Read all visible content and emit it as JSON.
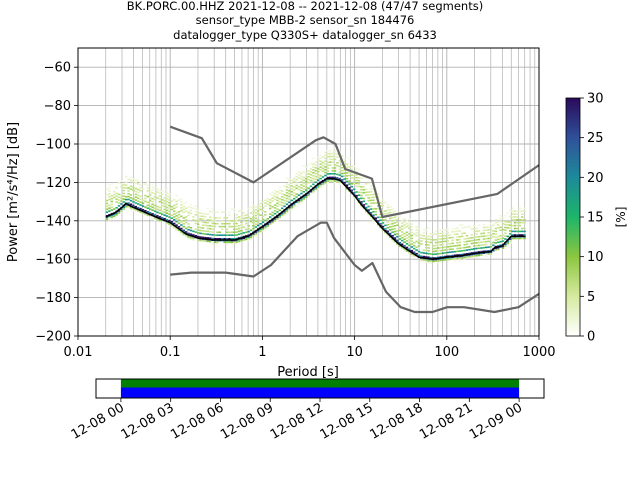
{
  "chart_data": {
    "type": "heatmap",
    "title_lines": [
      "BK.PORC.00.HHZ   2021-12-08 -- 2021-12-08  (47/47 segments)",
      "sensor_type MBB-2 sensor_sn 184476",
      "datalogger_type Q330S+ datalogger_sn 6433"
    ],
    "xlabel": "Period [s]",
    "ylabel": "Power [m²/s⁴/Hz] [dB]",
    "x_scale": "log",
    "xlim": [
      0.01,
      1000
    ],
    "ylim": [
      -200,
      -50
    ],
    "x_ticks": [
      {
        "value": 0.01,
        "label": "0.01"
      },
      {
        "value": 0.1,
        "label": "0.1"
      },
      {
        "value": 1,
        "label": "1"
      },
      {
        "value": 10,
        "label": "10"
      },
      {
        "value": 100,
        "label": "100"
      },
      {
        "value": 1000,
        "label": "1000"
      }
    ],
    "y_ticks": [
      {
        "value": -60,
        "label": "−60"
      },
      {
        "value": -80,
        "label": "−80"
      },
      {
        "value": -100,
        "label": "−100"
      },
      {
        "value": -120,
        "label": "−120"
      },
      {
        "value": -140,
        "label": "−140"
      },
      {
        "value": -160,
        "label": "−160"
      },
      {
        "value": -180,
        "label": "−180"
      },
      {
        "value": -200,
        "label": "−200"
      }
    ],
    "grid": true,
    "colorbar": {
      "label": "[%]",
      "range": [
        0,
        30
      ],
      "ticks": [
        "0",
        "5",
        "10",
        "15",
        "20",
        "25",
        "30"
      ],
      "colormap_stops": [
        "#ffffff",
        "#d6eaa0",
        "#8cc63f",
        "#1db56a",
        "#1d8a9a",
        "#30509a",
        "#2a0a5a"
      ]
    },
    "series": [
      {
        "role": "mode",
        "color": "#000000",
        "points": [
          [
            0.02,
            -138
          ],
          [
            0.025,
            -136
          ],
          [
            0.03,
            -133
          ],
          [
            0.033,
            -131
          ],
          [
            0.04,
            -133
          ],
          [
            0.05,
            -135
          ],
          [
            0.07,
            -138
          ],
          [
            0.1,
            -141
          ],
          [
            0.15,
            -147
          ],
          [
            0.2,
            -149
          ],
          [
            0.3,
            -150
          ],
          [
            0.5,
            -150
          ],
          [
            0.7,
            -148
          ],
          [
            1,
            -143
          ],
          [
            1.5,
            -137
          ],
          [
            2,
            -132
          ],
          [
            3,
            -126
          ],
          [
            4,
            -121
          ],
          [
            5,
            -118
          ],
          [
            6,
            -118
          ],
          [
            7,
            -119
          ],
          [
            8,
            -122
          ],
          [
            10,
            -127
          ],
          [
            12,
            -132
          ],
          [
            15,
            -137
          ],
          [
            20,
            -144
          ],
          [
            30,
            -152
          ],
          [
            40,
            -156
          ],
          [
            50,
            -159
          ],
          [
            70,
            -160
          ],
          [
            100,
            -159
          ],
          [
            150,
            -158
          ],
          [
            200,
            -157
          ],
          [
            300,
            -156
          ],
          [
            330,
            -154
          ],
          [
            400,
            -153
          ],
          [
            500,
            -148
          ],
          [
            700,
            -148
          ]
        ]
      },
      {
        "role": "noise-model-high",
        "color": "#666666",
        "points": [
          [
            0.1,
            -91
          ],
          [
            0.22,
            -97
          ],
          [
            0.32,
            -110
          ],
          [
            0.8,
            -120
          ],
          [
            3.8,
            -98
          ],
          [
            4.6,
            -96.5
          ],
          [
            6.2,
            -100
          ],
          [
            7.9,
            -113
          ],
          [
            15.4,
            -118
          ],
          [
            20,
            -138
          ],
          [
            354,
            -126
          ],
          [
            1000,
            -111
          ]
        ]
      },
      {
        "role": "noise-model-low",
        "color": "#666666",
        "points": [
          [
            0.1,
            -168
          ],
          [
            0.17,
            -167
          ],
          [
            0.4,
            -167
          ],
          [
            0.8,
            -169
          ],
          [
            1.24,
            -163
          ],
          [
            2.4,
            -148
          ],
          [
            4.3,
            -141
          ],
          [
            5,
            -141
          ],
          [
            6,
            -149
          ],
          [
            10,
            -163
          ],
          [
            12,
            -166
          ],
          [
            15.6,
            -162
          ],
          [
            21.9,
            -177
          ],
          [
            31.6,
            -185
          ],
          [
            45,
            -187.5
          ],
          [
            70,
            -187.5
          ],
          [
            101,
            -185
          ],
          [
            154,
            -185
          ],
          [
            328,
            -187.5
          ],
          [
            600,
            -185
          ],
          [
            1000,
            -178
          ]
        ]
      }
    ]
  },
  "time_axis": {
    "tick_labels": [
      "12-08 00",
      "12-08 03",
      "12-08 06",
      "12-08 09",
      "12-08 12",
      "12-08 15",
      "12-08 18",
      "12-08 21",
      "12-09 00"
    ],
    "range_hours": [
      -1.5,
      25.5
    ],
    "coverage_hours": [
      0,
      24
    ],
    "colors": {
      "upper": "#008000",
      "lower": "#0000ff"
    }
  }
}
